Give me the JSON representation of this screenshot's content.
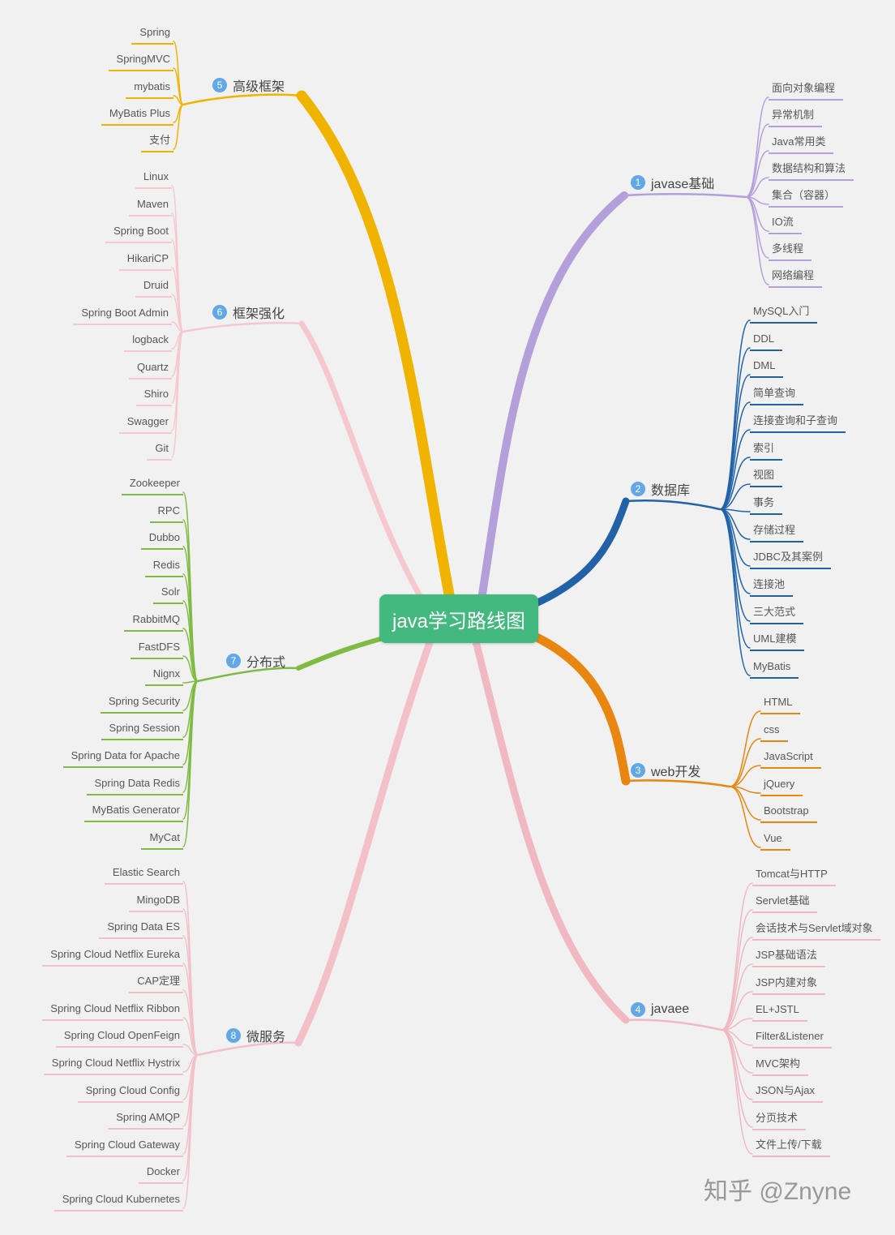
{
  "title": "java学习路线图",
  "watermark": "知乎 @Znyne",
  "colors": {
    "center": "#43b97f",
    "badge": "#62a7e6",
    "background": "#f1f1f2"
  },
  "branches": [
    {
      "number": "1",
      "label": "javase基础",
      "color": "#b59fdb",
      "children": [
        "面向对象编程",
        "异常机制",
        "Java常用类",
        "数据结构和算法",
        "集合（容器）",
        "IO流",
        "多线程",
        "网络编程"
      ]
    },
    {
      "number": "2",
      "label": "数据库",
      "color": "#2263a8",
      "children": [
        "MySQL入门",
        "DDL",
        "DML",
        "简单查询",
        "连接查询和子查询",
        "索引",
        "视图",
        "事务",
        "存储过程",
        "JDBC及其案例",
        "连接池",
        "三大范式",
        "UML建模",
        "MyBatis"
      ]
    },
    {
      "number": "3",
      "label": "web开发",
      "color": "#e8860f",
      "children": [
        "HTML",
        "css",
        "JavaScript",
        "jQuery",
        "Bootstrap",
        "Vue"
      ]
    },
    {
      "number": "4",
      "label": "javaee",
      "color": "#f0b9c1",
      "children": [
        "Tomcat与HTTP",
        "Servlet基础",
        "会话技术与Servlet域对象",
        "JSP基础语法",
        "JSP内建对象",
        "EL+JSTL",
        "Filter&Listener",
        "MVC架构",
        "JSON与Ajax",
        "分页技术",
        "文件上传/下载"
      ]
    },
    {
      "number": "5",
      "label": "高级框架",
      "color": "#f0b400",
      "children": [
        "Spring",
        "SpringMVC",
        "mybatis",
        "MyBatis Plus",
        "支付"
      ]
    },
    {
      "number": "6",
      "label": "框架强化",
      "color": "#f6c8ce",
      "children": [
        "Linux",
        "Maven",
        "Spring Boot",
        "HikariCP",
        "Druid",
        "Spring Boot Admin",
        "logback",
        "Quartz",
        "Shiro",
        "Swagger",
        "Git"
      ]
    },
    {
      "number": "7",
      "label": "分布式",
      "color": "#7fbb42",
      "children": [
        "Zookeeper",
        "RPC",
        "Dubbo",
        "Redis",
        "Solr",
        "RabbitMQ",
        "FastDFS",
        "Nignx",
        "Spring Security",
        "Spring Session",
        "Spring Data for Apache",
        "Spring Data Redis",
        "MyBatis Generator",
        "MyCat"
      ]
    },
    {
      "number": "8",
      "label": "微服务",
      "color": "#f3c0c8",
      "children": [
        "Elastic Search",
        "MingoDB",
        "Spring Data ES",
        "Spring Cloud Netflix Eureka",
        "CAP定理",
        "Spring Cloud Netflix Ribbon",
        "Spring Cloud OpenFeign",
        "Spring Cloud Netflix Hystrix",
        "Spring Cloud Config",
        "Spring AMQP",
        "Spring Cloud Gateway",
        "Docker",
        "Spring Cloud Kubernetes"
      ]
    }
  ]
}
